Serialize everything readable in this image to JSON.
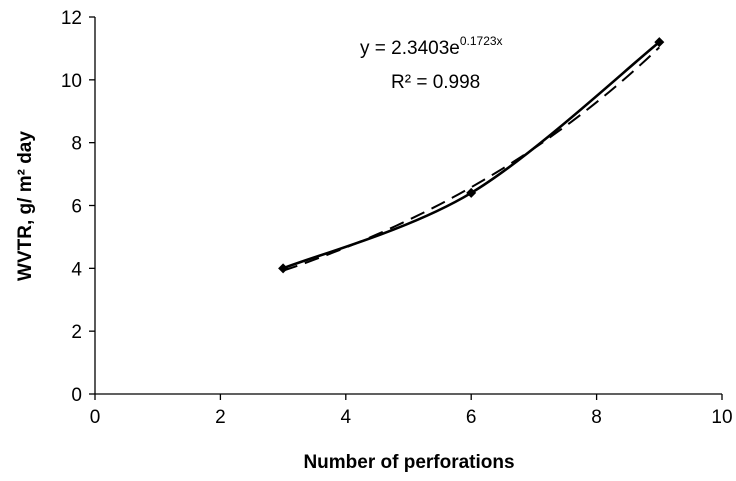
{
  "chart_data": {
    "type": "scatter",
    "title": "",
    "xlabel": "Number of perforations",
    "ylabel": "WVTR, g/ m² day",
    "xlim": [
      0,
      10
    ],
    "ylim": [
      0,
      12
    ],
    "x_ticks": [
      0,
      2,
      4,
      6,
      8,
      10
    ],
    "y_ticks": [
      0,
      2,
      4,
      6,
      8,
      10,
      12
    ],
    "grid": false,
    "legend": "none",
    "series": [
      {
        "style": "solid line with diamond markers",
        "color": "#000000",
        "x": [
          3,
          6,
          9
        ],
        "y": [
          4.0,
          6.4,
          11.2
        ]
      }
    ],
    "trendline": {
      "type": "exponential",
      "style": "dashed",
      "color": "#000000",
      "a": 2.3403,
      "b": 0.1723,
      "x_range": [
        3,
        9
      ]
    },
    "annotations": {
      "equation_prefix": "y = 2.3403e",
      "equation_exponent": "0.1723x",
      "r_squared": "R² = 0.998"
    }
  }
}
